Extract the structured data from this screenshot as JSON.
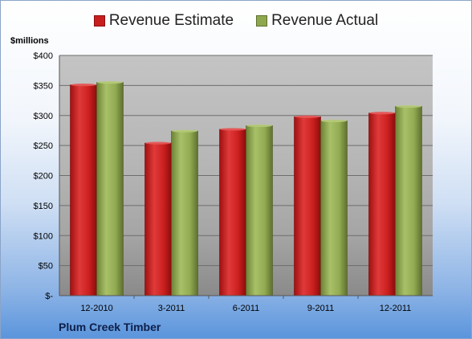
{
  "chart_data": {
    "type": "bar",
    "categories": [
      "12-2010",
      "3-2011",
      "6-2011",
      "9-2011",
      "12-2011"
    ],
    "series": [
      {
        "name": "Revenue Estimate",
        "color": "#c81e1e",
        "values": [
          351,
          254,
          277,
          298,
          304
        ]
      },
      {
        "name": "Revenue Actual",
        "color": "#8fa84e",
        "values": [
          355,
          274,
          283,
          291,
          315
        ]
      }
    ],
    "ylabel": "$millions",
    "ylim": [
      0,
      400
    ],
    "yticks": [
      0,
      50,
      100,
      150,
      200,
      250,
      300,
      350,
      400
    ],
    "ytick_labels": [
      "$-",
      "$50",
      "$100",
      "$150",
      "$200",
      "$250",
      "$300",
      "$350",
      "$400"
    ],
    "grid": true,
    "legend_position": "top-center",
    "caption": "Plum Creek Timber"
  }
}
